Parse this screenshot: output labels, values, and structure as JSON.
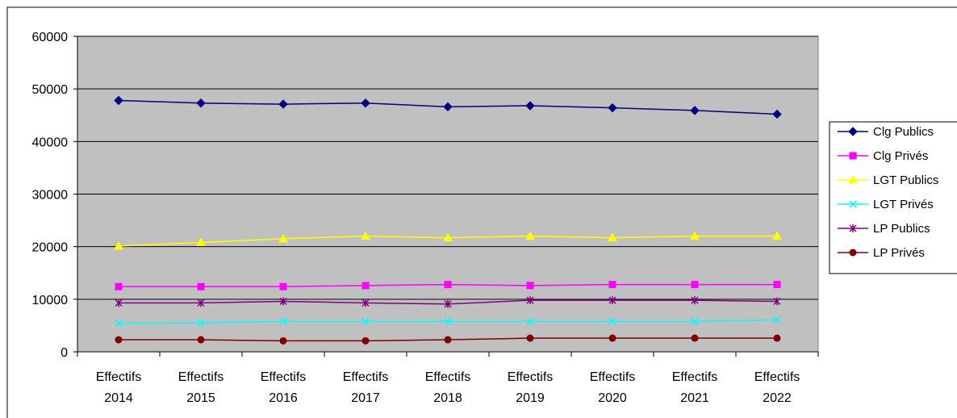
{
  "chart_data": {
    "type": "line",
    "title": "",
    "xlabel": "",
    "ylabel": "",
    "categories": [
      [
        "Effectifs",
        "2014"
      ],
      [
        "Effectifs",
        "2015"
      ],
      [
        "Effectifs",
        "2016"
      ],
      [
        "Effectifs",
        "2017"
      ],
      [
        "Effectifs",
        "2018"
      ],
      [
        "Effectifs",
        "2019"
      ],
      [
        "Effectifs",
        "2020"
      ],
      [
        "Effectifs",
        "2021"
      ],
      [
        "Effectifs",
        "2022"
      ]
    ],
    "ylim": [
      0,
      60000
    ],
    "yticks": [
      "0",
      "10000",
      "20000",
      "30000",
      "40000",
      "50000",
      "60000"
    ],
    "grid": "horizontal",
    "plot_background": "#c0c0c0",
    "legend_position": "right",
    "series": [
      {
        "name": "Clg Publics",
        "color": "#000080",
        "marker": "diamond",
        "values": [
          47800,
          47300,
          47100,
          47300,
          46600,
          46800,
          46400,
          45900,
          45200
        ]
      },
      {
        "name": "Clg Privés",
        "color": "#ff00ff",
        "marker": "square",
        "values": [
          12400,
          12400,
          12400,
          12600,
          12800,
          12600,
          12800,
          12800,
          12800
        ]
      },
      {
        "name": "LGT Publics",
        "color": "#ffff00",
        "marker": "triangle",
        "values": [
          20100,
          20800,
          21500,
          22000,
          21700,
          22000,
          21700,
          22000,
          22000
        ]
      },
      {
        "name": "LGT Privés",
        "color": "#00ffff",
        "marker": "x",
        "values": [
          5400,
          5500,
          5800,
          5800,
          5800,
          5800,
          5800,
          5800,
          6100
        ]
      },
      {
        "name": "LP Publics",
        "color": "#800080",
        "marker": "star",
        "values": [
          9300,
          9300,
          9600,
          9300,
          9100,
          9800,
          9800,
          9800,
          9600
        ]
      },
      {
        "name": "LP Privés",
        "color": "#800000",
        "marker": "circle",
        "values": [
          2300,
          2300,
          2100,
          2100,
          2300,
          2600,
          2600,
          2600,
          2600
        ]
      }
    ]
  }
}
